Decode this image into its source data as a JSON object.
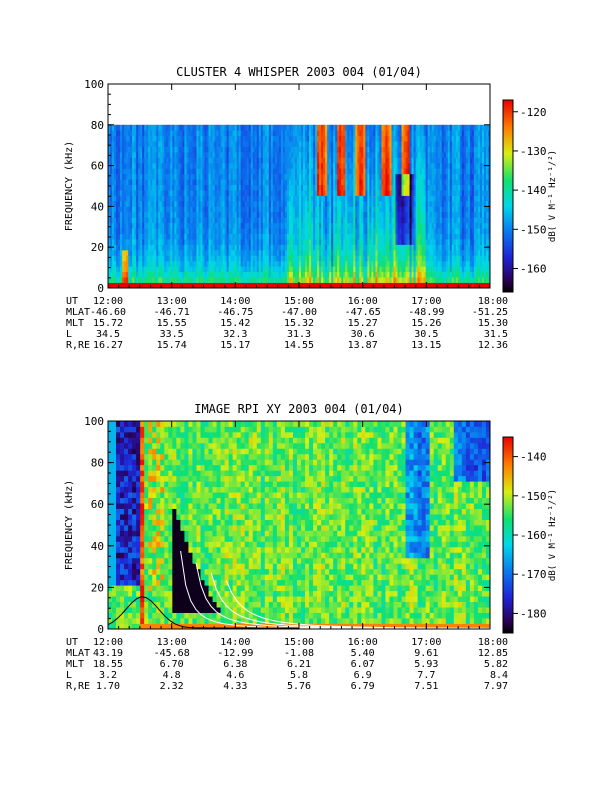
{
  "chart_data": [
    {
      "type": "heatmap",
      "title": "CLUSTER 4 WHISPER 2003 004 (01/04)",
      "ylabel": "FREQUENCY (kHz)",
      "ylim": [
        0,
        100
      ],
      "yticks": [
        "0",
        "20",
        "40",
        "60",
        "80",
        "100"
      ],
      "xticks": [
        "12:00",
        "13:00",
        "14:00",
        "15:00",
        "16:00",
        "17:00",
        "18:00"
      ],
      "data_freq_max_khz": 80,
      "colorbar": {
        "label": "dB( V M⁻¹ Hz⁻¹/²)",
        "range": [
          -166,
          -117
        ],
        "ticks": [
          "-120",
          "-130",
          "-140",
          "-150",
          "-160"
        ]
      },
      "ephemeris": [
        {
          "name": "UT",
          "values": [
            "12:00",
            "13:00",
            "14:00",
            "15:00",
            "16:00",
            "17:00",
            "18:00"
          ]
        },
        {
          "name": "MLAT",
          "values": [
            "-46.60",
            "-46.71",
            "-46.75",
            "-47.00",
            "-47.65",
            "-48.99",
            "-51.25"
          ]
        },
        {
          "name": "MLT",
          "values": [
            "15.72",
            "15.55",
            "15.42",
            "15.32",
            "15.27",
            "15.26",
            "15.30"
          ]
        },
        {
          "name": "L",
          "values": [
            "34.5",
            "33.5",
            "32.3",
            "31.3",
            "30.6",
            "30.5",
            "31.5"
          ]
        },
        {
          "name": "R,RE",
          "values": [
            "16.27",
            "15.74",
            "15.17",
            "14.55",
            "13.87",
            "13.15",
            "12.36"
          ]
        }
      ]
    },
    {
      "type": "heatmap",
      "title": "IMAGE RPI XY 2003 004 (01/04)",
      "ylabel": "FREQUENCY (kHz)",
      "ylim": [
        0,
        100
      ],
      "yticks": [
        "0",
        "20",
        "40",
        "60",
        "80",
        "100"
      ],
      "xticks": [
        "12:00",
        "13:00",
        "14:00",
        "15:00",
        "16:00",
        "17:00",
        "18:00"
      ],
      "colorbar": {
        "label": "dB( V M⁻¹ Hz⁻¹/²)",
        "range": [
          -185,
          -135
        ],
        "ticks": [
          "-140",
          "-150",
          "-160",
          "-170",
          "-180"
        ]
      },
      "ephemeris": [
        {
          "name": "UT",
          "values": [
            "12:00",
            "13:00",
            "14:00",
            "15:00",
            "16:00",
            "17:00",
            "18:00"
          ]
        },
        {
          "name": "MLAT",
          "values": [
            "43.19",
            "-45.68",
            "-12.99",
            "-1.08",
            "5.40",
            "9.61",
            "12.85"
          ]
        },
        {
          "name": "MLT",
          "values": [
            "18.55",
            "6.70",
            "6.38",
            "6.21",
            "6.07",
            "5.93",
            "5.82"
          ]
        },
        {
          "name": "L",
          "values": [
            "3.2",
            "4.8",
            "4.6",
            "5.8",
            "6.9",
            "7.7",
            "8.4"
          ]
        },
        {
          "name": "R,RE",
          "values": [
            "1.70",
            "2.32",
            "4.33",
            "5.76",
            "6.79",
            "7.51",
            "7.97"
          ]
        }
      ]
    }
  ]
}
